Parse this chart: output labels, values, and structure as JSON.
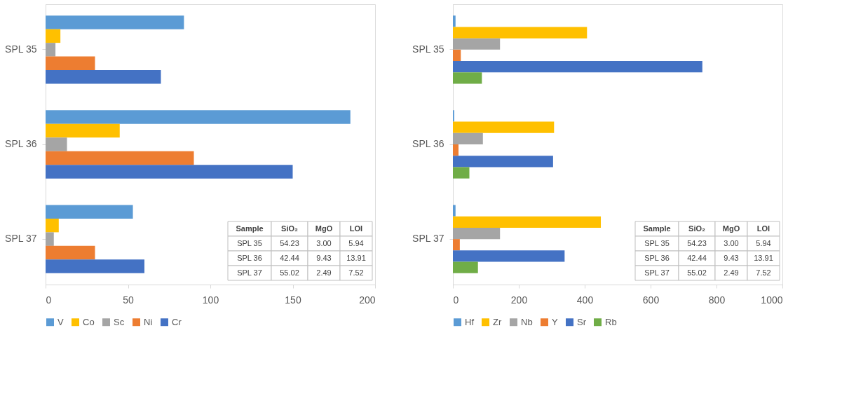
{
  "chart_data": [
    {
      "type": "bar",
      "orientation": "horizontal",
      "categories": [
        "SPL 35",
        "SPL 36",
        "SPL 37"
      ],
      "series": [
        {
          "name": "V",
          "color": "#5b9bd5",
          "values": [
            84,
            185,
            53
          ]
        },
        {
          "name": "Co",
          "color": "#ffc000",
          "values": [
            9,
            45,
            8
          ]
        },
        {
          "name": "Sc",
          "color": "#a5a5a5",
          "values": [
            6,
            13,
            5
          ]
        },
        {
          "name": "Ni",
          "color": "#ed7d31",
          "values": [
            30,
            90,
            30
          ]
        },
        {
          "name": "Cr",
          "color": "#4472c4",
          "values": [
            70,
            150,
            60
          ]
        }
      ],
      "xlim": [
        0,
        200
      ],
      "xticks": [
        0,
        50,
        100,
        150,
        200
      ],
      "grid": false,
      "legend": "bottom",
      "annotations": [
        "Sample",
        "SiO₂",
        "MgO",
        "LOI",
        "SPL 35",
        "54.23",
        "3.00",
        "5.94",
        "SPL 36",
        "42.44",
        "9.43",
        "13.91",
        "SPL 37",
        "55.02",
        "2.49",
        "7.52"
      ]
    },
    {
      "type": "bar",
      "orientation": "horizontal",
      "categories": [
        "SPL 35",
        "SPL 36",
        "SPL 37"
      ],
      "series": [
        {
          "name": "Hf",
          "color": "#5b9bd5",
          "values": [
            8,
            4,
            8
          ]
        },
        {
          "name": "Zr",
          "color": "#ffc000",
          "values": [
            407,
            307,
            449
          ]
        },
        {
          "name": "Nb",
          "color": "#a5a5a5",
          "values": [
            143,
            91,
            143
          ]
        },
        {
          "name": "Y",
          "color": "#ed7d31",
          "values": [
            24,
            17,
            21
          ]
        },
        {
          "name": "Sr",
          "color": "#4472c4",
          "values": [
            757,
            304,
            339
          ]
        },
        {
          "name": "Rb",
          "color": "#70ad47",
          "values": [
            88,
            50,
            76
          ]
        }
      ],
      "xlim": [
        0,
        1000
      ],
      "xticks": [
        0,
        200,
        400,
        600,
        800,
        1000
      ],
      "grid": false,
      "legend": "bottom",
      "annotations": [
        "Sample",
        "SiO₂",
        "MgO",
        "LOI",
        "SPL 35",
        "54.23",
        "3.00",
        "5.94",
        "SPL 36",
        "42.44",
        "9.43",
        "13.91",
        "SPL 37",
        "55.02",
        "2.49",
        "7.52"
      ]
    }
  ]
}
